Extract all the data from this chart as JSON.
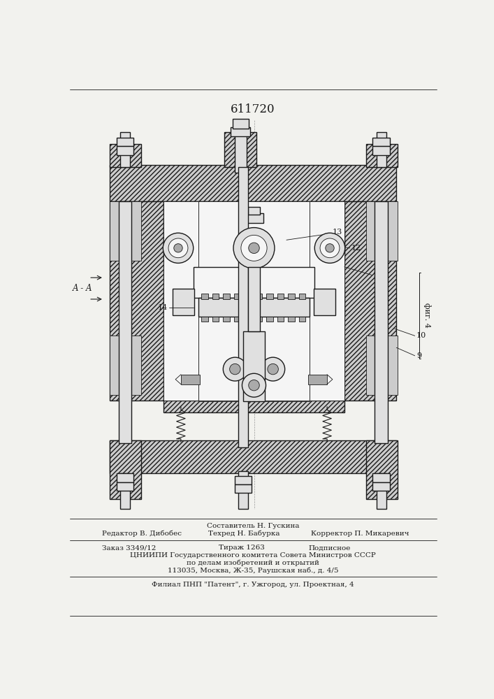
{
  "patent_number": "611720",
  "bg_color": "#f2f2ee",
  "line_color": "#1a1a1a",
  "fig_label": "фиг. 4",
  "section_label": "A - A",
  "footer": {
    "composer": "Составитель Н. Гускина",
    "editor": "Редактор В. Дибобес",
    "tech": "Техред Н. Бабурка",
    "corrector": "Корректор П. Микаревич",
    "order": "Заказ 3349/12",
    "circulation": "Тираж 1263",
    "subscription": "Подписное",
    "org_line1": "ЦНИИПИ Государственного комитета Совета Министров СССР",
    "org_line2": "по делам изобретений и открытий",
    "address": "113035, Москва, Ж-35, Раушская наб., д. 4/5",
    "branch": "Филиал ПНП \"Патент\", г. Ужгород, ул. Проектная, 4"
  }
}
